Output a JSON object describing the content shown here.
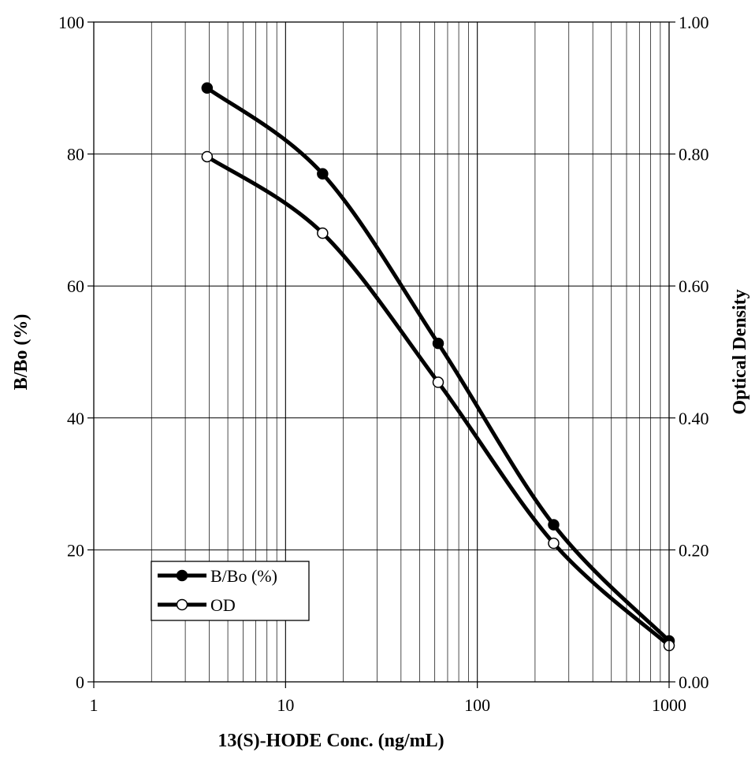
{
  "chart_data": {
    "type": "line",
    "xlabel": "13(S)-HODE Conc. (ng/mL)",
    "ylabel": "B/Bo (%)",
    "y2label": "Optical Density",
    "xscale": "log",
    "xlim": [
      1,
      1000
    ],
    "ylim": [
      0,
      100
    ],
    "y2lim": [
      0,
      1
    ],
    "x_ticks": [
      "1",
      "10",
      "100",
      "1000"
    ],
    "y_ticks": [
      "0",
      "20",
      "40",
      "60",
      "80",
      "100"
    ],
    "y2_ticks": [
      "0.00",
      "0.20",
      "0.40",
      "0.60",
      "0.80",
      "1.00"
    ],
    "grid": true,
    "legend_position": "bottom-left",
    "series": [
      {
        "name": "B/Bo (%)",
        "axis": "left",
        "marker": "filled-circle",
        "x": [
          3.9,
          15.6,
          62.5,
          250,
          1000
        ],
        "values": [
          90,
          77,
          51.3,
          23.8,
          6.2
        ]
      },
      {
        "name": "OD",
        "axis": "right",
        "marker": "open-circle",
        "x": [
          3.9,
          15.6,
          62.5,
          250,
          1000
        ],
        "values": [
          0.796,
          0.68,
          0.454,
          0.21,
          0.055
        ]
      }
    ]
  }
}
